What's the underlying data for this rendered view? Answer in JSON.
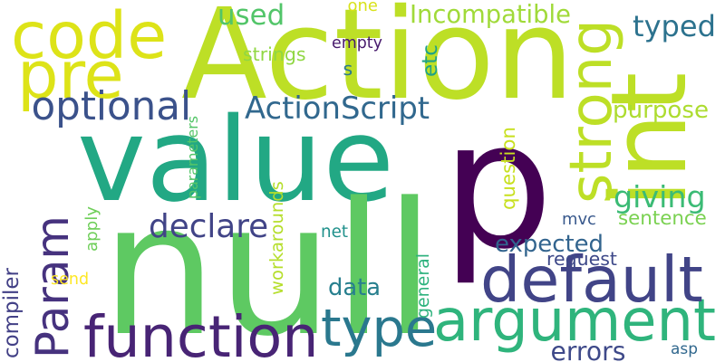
{
  "words": [
    {
      "id": "p",
      "text": "p",
      "color": "#440154",
      "rotated": false
    },
    {
      "id": "value",
      "text": "value",
      "color": "#22a884",
      "rotated": false
    },
    {
      "id": "null",
      "text": "null",
      "color": "#5ec962",
      "rotated": false
    },
    {
      "id": "action",
      "text": "Action",
      "color": "#bddf26",
      "rotated": false
    },
    {
      "id": "int",
      "text": "int",
      "color": "#bddf26",
      "rotated": true
    },
    {
      "id": "argument",
      "text": "argument",
      "color": "#2fb47c",
      "rotated": false
    },
    {
      "id": "default",
      "text": "default",
      "color": "#414487",
      "rotated": false
    },
    {
      "id": "function",
      "text": "function",
      "color": "#482475",
      "rotated": false
    },
    {
      "id": "code",
      "text": "code",
      "color": "#dde318",
      "rotated": false
    },
    {
      "id": "pre",
      "text": "pre",
      "color": "#dde318",
      "rotated": false
    },
    {
      "id": "param",
      "text": "Param",
      "color": "#46327e",
      "rotated": true
    },
    {
      "id": "strong",
      "text": "strong",
      "color": "#bddf26",
      "rotated": true
    },
    {
      "id": "type",
      "text": "type",
      "color": "#2a788e",
      "rotated": false
    },
    {
      "id": "optional",
      "text": "optional",
      "color": "#3b528b",
      "rotated": false
    },
    {
      "id": "actionscript",
      "text": "ActionScript",
      "color": "#31688e",
      "rotated": false
    },
    {
      "id": "declare",
      "text": "declare",
      "color": "#414487",
      "rotated": false
    },
    {
      "id": "typed",
      "text": "typed",
      "color": "#2c728e",
      "rotated": false
    },
    {
      "id": "giving",
      "text": "giving",
      "color": "#3bbb75",
      "rotated": false
    },
    {
      "id": "incompatible",
      "text": "Incompatible",
      "color": "#a0da39",
      "rotated": false
    },
    {
      "id": "used",
      "text": "used",
      "color": "#52c569",
      "rotated": false
    },
    {
      "id": "purpose",
      "text": "purpose",
      "color": "#addc30",
      "rotated": false
    },
    {
      "id": "expected",
      "text": "expected",
      "color": "#32648e",
      "rotated": false
    },
    {
      "id": "errors",
      "text": "errors",
      "color": "#3e4989",
      "rotated": false
    },
    {
      "id": "data",
      "text": "data",
      "color": "#277f8e",
      "rotated": false
    },
    {
      "id": "compiler",
      "text": "compiler",
      "color": "#424086",
      "rotated": true
    },
    {
      "id": "apply",
      "text": "apply",
      "color": "#6ece58",
      "rotated": true
    },
    {
      "id": "workarounds",
      "text": "workarounds",
      "color": "#b5de2b",
      "rotated": true
    },
    {
      "id": "general",
      "text": "general",
      "color": "#2db27d",
      "rotated": true
    },
    {
      "id": "parameters",
      "text": "parameters",
      "color": "#54c568",
      "rotated": true
    },
    {
      "id": "question",
      "text": "question",
      "color": "#c8e020",
      "rotated": true
    },
    {
      "id": "mvc",
      "text": "mvc",
      "color": "#38588c",
      "rotated": false
    },
    {
      "id": "sentence",
      "text": "sentence",
      "color": "#7ad151",
      "rotated": false
    },
    {
      "id": "request",
      "text": "request",
      "color": "#3e4989",
      "rotated": false
    },
    {
      "id": "asp",
      "text": "asp",
      "color": "#31688e",
      "rotated": false
    },
    {
      "id": "net",
      "text": "net",
      "color": "#21918c",
      "rotated": false
    },
    {
      "id": "send",
      "text": "send",
      "color": "#fde725",
      "rotated": false
    },
    {
      "id": "empty",
      "text": "empty",
      "color": "#481b6d",
      "rotated": false
    },
    {
      "id": "strings",
      "text": "strings",
      "color": "#90d743",
      "rotated": false
    },
    {
      "id": "s",
      "text": "s",
      "color": "#2a788e",
      "rotated": false
    },
    {
      "id": "etc",
      "text": "etc",
      "color": "#1fa287",
      "rotated": true
    },
    {
      "id": "one",
      "text": "one",
      "color": "#d8e219",
      "rotated": false
    }
  ]
}
